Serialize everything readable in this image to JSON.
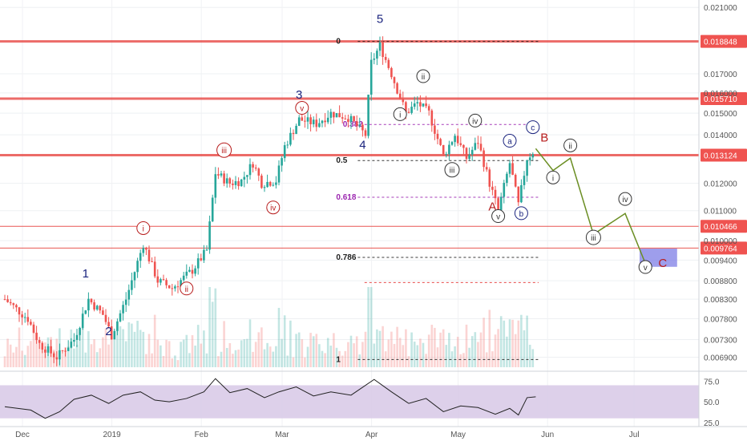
{
  "chart_data": {
    "type": "candlestick",
    "title": "",
    "xlabel": "",
    "ylabel": "",
    "x_ticks": [
      "Dec",
      "2019",
      "Feb",
      "Mar",
      "Apr",
      "May",
      "Jun",
      "Jul"
    ],
    "y_ticks": [
      0.021,
      0.017,
      0.016,
      0.015,
      0.014,
      0.012,
      0.011,
      0.01,
      0.0094,
      0.0088,
      0.0083,
      0.0078,
      0.0073,
      0.0069
    ],
    "ylim": [
      0.00665,
      0.0215
    ],
    "y_scale": "log",
    "resistance_levels": [
      {
        "label": "0.018848",
        "value": 0.018848,
        "color": "#e53935"
      },
      {
        "label": "0.015710",
        "value": 0.01571,
        "color": "#e53935"
      },
      {
        "label": "0.013124",
        "value": 0.013124,
        "color": "#e53935"
      },
      {
        "label": "0.010466",
        "value": 0.010466,
        "color": "#e53935"
      },
      {
        "label": "0.009764",
        "value": 0.009764,
        "color": "#e53935"
      }
    ],
    "fib_levels": [
      {
        "label": "0",
        "value": 0.01885,
        "color": "#222222"
      },
      {
        "label": "0.382",
        "value": 0.01447,
        "color": "#9c27b0"
      },
      {
        "label": "0.5",
        "value": 0.0129,
        "color": "#222222"
      },
      {
        "label": "0.618",
        "value": 0.01148,
        "color": "#9c27b0"
      },
      {
        "label": "0.786",
        "value": 0.00948,
        "color": "#222222"
      },
      {
        "label": "",
        "value": 0.00875,
        "color": "#e53935"
      },
      {
        "label": "1",
        "value": 0.00685,
        "color": "#222222"
      }
    ],
    "price_points": [
      {
        "date": "2018-11-26",
        "price": 0.0083
      },
      {
        "date": "2018-12-04",
        "price": 0.0078
      },
      {
        "date": "2018-12-08",
        "price": 0.0072
      },
      {
        "date": "2018-12-14",
        "price": 0.0069
      },
      {
        "date": "2018-12-20",
        "price": 0.0073
      },
      {
        "date": "2018-12-25",
        "price": 0.0083
      },
      {
        "date": "2018-12-30",
        "price": 0.0079
      },
      {
        "date": "2019-01-02",
        "price": 0.0074
      },
      {
        "date": "2019-01-07",
        "price": 0.0083
      },
      {
        "date": "2019-01-13",
        "price": 0.0099
      },
      {
        "date": "2019-01-18",
        "price": 0.0088
      },
      {
        "date": "2019-01-23",
        "price": 0.0086
      },
      {
        "date": "2019-01-30",
        "price": 0.0091
      },
      {
        "date": "2019-02-04",
        "price": 0.0097
      },
      {
        "date": "2019-02-07",
        "price": 0.0124
      },
      {
        "date": "2019-02-12",
        "price": 0.012
      },
      {
        "date": "2019-02-16",
        "price": 0.0121
      },
      {
        "date": "2019-02-20",
        "price": 0.0128
      },
      {
        "date": "2019-02-23",
        "price": 0.012
      },
      {
        "date": "2019-02-28",
        "price": 0.0121
      },
      {
        "date": "2019-03-03",
        "price": 0.0135
      },
      {
        "date": "2019-03-08",
        "price": 0.0147
      },
      {
        "date": "2019-03-14",
        "price": 0.0145
      },
      {
        "date": "2019-03-19",
        "price": 0.015
      },
      {
        "date": "2019-03-25",
        "price": 0.0148
      },
      {
        "date": "2019-03-31",
        "price": 0.014
      },
      {
        "date": "2019-04-02",
        "price": 0.0176
      },
      {
        "date": "2019-04-05",
        "price": 0.0186
      },
      {
        "date": "2019-04-09",
        "price": 0.017
      },
      {
        "date": "2019-04-14",
        "price": 0.015
      },
      {
        "date": "2019-04-18",
        "price": 0.0155
      },
      {
        "date": "2019-04-22",
        "price": 0.015
      },
      {
        "date": "2019-04-27",
        "price": 0.0131
      },
      {
        "date": "2019-05-01",
        "price": 0.014
      },
      {
        "date": "2019-05-05",
        "price": 0.013
      },
      {
        "date": "2019-05-09",
        "price": 0.0137
      },
      {
        "date": "2019-05-13",
        "price": 0.012
      },
      {
        "date": "2019-05-16",
        "price": 0.011
      },
      {
        "date": "2019-05-20",
        "price": 0.0128
      },
      {
        "date": "2019-05-23",
        "price": 0.0112
      },
      {
        "date": "2019-05-26",
        "price": 0.013
      },
      {
        "date": "2019-05-29",
        "price": 0.0134
      }
    ],
    "projection": [
      {
        "date": "2019-05-29",
        "price": 0.0134,
        "label": "c"
      },
      {
        "date": "2019-06-04",
        "price": 0.0125,
        "label": "i"
      },
      {
        "date": "2019-06-10",
        "price": 0.013,
        "label": "ii"
      },
      {
        "date": "2019-06-18",
        "price": 0.0102,
        "label": "iii"
      },
      {
        "date": "2019-06-29",
        "price": 0.0109,
        "label": "iv"
      },
      {
        "date": "2019-07-06",
        "price": 0.0093,
        "label": "v"
      }
    ],
    "target_zone": {
      "start": "2019-07-04",
      "end": "2019-07-17",
      "high": 0.00975,
      "low": 0.0092,
      "color": "#7e7ee6"
    },
    "wave_labels": [
      {
        "text": "1",
        "date": "2018-12-24",
        "price": 0.0089,
        "style": "big",
        "color": "#1a237e"
      },
      {
        "text": "2",
        "date": "2019-01-01",
        "price": 0.0074,
        "style": "big",
        "color": "#1a237e"
      },
      {
        "text": "3",
        "date": "2019-03-08",
        "price": 0.0157,
        "style": "big",
        "color": "#1a237e"
      },
      {
        "text": "4",
        "date": "2019-03-30",
        "price": 0.0134,
        "style": "big",
        "color": "#1a237e"
      },
      {
        "text": "5",
        "date": "2019-04-05",
        "price": 0.02,
        "style": "big",
        "color": "#1a237e"
      },
      {
        "text": "A",
        "date": "2019-05-14",
        "price": 0.011,
        "style": "big",
        "color": "#b71c1c"
      },
      {
        "text": "B",
        "date": "2019-06-01",
        "price": 0.0137,
        "style": "big",
        "color": "#b71c1c"
      },
      {
        "text": "C",
        "date": "2019-07-12",
        "price": 0.0092,
        "style": "big",
        "color": "#b71c1c"
      },
      {
        "text": "i",
        "date": "2019-01-13",
        "price": 0.0103,
        "style": "circle",
        "color": "#b71c1c"
      },
      {
        "text": "ii",
        "date": "2019-01-28",
        "price": 0.0085,
        "style": "circle",
        "color": "#b71c1c"
      },
      {
        "text": "iii",
        "date": "2019-02-10",
        "price": 0.0132,
        "style": "circle",
        "color": "#b71c1c"
      },
      {
        "text": "iv",
        "date": "2019-02-27",
        "price": 0.011,
        "style": "circle",
        "color": "#b71c1c"
      },
      {
        "text": "v",
        "date": "2019-03-09",
        "price": 0.0151,
        "style": "circle",
        "color": "#b71c1c"
      },
      {
        "text": "i",
        "date": "2019-04-12",
        "price": 0.0148,
        "style": "circle",
        "color": "#333333"
      },
      {
        "text": "ii",
        "date": "2019-04-20",
        "price": 0.0167,
        "style": "circle",
        "color": "#333333"
      },
      {
        "text": "iii",
        "date": "2019-04-30",
        "price": 0.0124,
        "style": "circle",
        "color": "#333333"
      },
      {
        "text": "iv",
        "date": "2019-05-08",
        "price": 0.0145,
        "style": "circle",
        "color": "#333333"
      },
      {
        "text": "v",
        "date": "2019-05-16",
        "price": 0.0107,
        "style": "circle",
        "color": "#333333"
      },
      {
        "text": "a",
        "date": "2019-05-20",
        "price": 0.0136,
        "style": "circle",
        "color": "#1a237e"
      },
      {
        "text": "b",
        "date": "2019-05-24",
        "price": 0.0108,
        "style": "circle",
        "color": "#1a237e"
      },
      {
        "text": "c",
        "date": "2019-05-28",
        "price": 0.0142,
        "style": "circle",
        "color": "#1a237e"
      },
      {
        "text": "i",
        "date": "2019-06-04",
        "price": 0.0121,
        "style": "circle",
        "color": "#333333"
      },
      {
        "text": "ii",
        "date": "2019-06-10",
        "price": 0.0134,
        "style": "circle",
        "color": "#333333"
      },
      {
        "text": "iii",
        "date": "2019-06-18",
        "price": 0.01,
        "style": "circle",
        "color": "#333333"
      },
      {
        "text": "iv",
        "date": "2019-06-29",
        "price": 0.0113,
        "style": "circle",
        "color": "#333333"
      },
      {
        "text": "v",
        "date": "2019-07-06",
        "price": 0.0091,
        "style": "circle",
        "color": "#333333"
      }
    ],
    "rsi": {
      "y_ticks": [
        75.0,
        50.0,
        25.0
      ],
      "ylim": [
        20,
        85
      ],
      "band": [
        30,
        70
      ],
      "values": [
        {
          "date": "2018-11-26",
          "v": 44
        },
        {
          "date": "2018-12-05",
          "v": 40
        },
        {
          "date": "2018-12-10",
          "v": 30
        },
        {
          "date": "2018-12-15",
          "v": 38
        },
        {
          "date": "2018-12-20",
          "v": 53
        },
        {
          "date": "2018-12-26",
          "v": 58
        },
        {
          "date": "2019-01-01",
          "v": 48
        },
        {
          "date": "2019-01-06",
          "v": 58
        },
        {
          "date": "2019-01-12",
          "v": 62
        },
        {
          "date": "2019-01-17",
          "v": 52
        },
        {
          "date": "2019-01-22",
          "v": 50
        },
        {
          "date": "2019-01-28",
          "v": 54
        },
        {
          "date": "2019-02-03",
          "v": 62
        },
        {
          "date": "2019-02-07",
          "v": 78
        },
        {
          "date": "2019-02-12",
          "v": 61
        },
        {
          "date": "2019-02-18",
          "v": 66
        },
        {
          "date": "2019-02-24",
          "v": 55
        },
        {
          "date": "2019-03-01",
          "v": 62
        },
        {
          "date": "2019-03-07",
          "v": 68
        },
        {
          "date": "2019-03-13",
          "v": 57
        },
        {
          "date": "2019-03-19",
          "v": 62
        },
        {
          "date": "2019-03-26",
          "v": 58
        },
        {
          "date": "2019-04-03",
          "v": 77
        },
        {
          "date": "2019-04-09",
          "v": 62
        },
        {
          "date": "2019-04-15",
          "v": 48
        },
        {
          "date": "2019-04-21",
          "v": 54
        },
        {
          "date": "2019-04-27",
          "v": 38
        },
        {
          "date": "2019-05-03",
          "v": 45
        },
        {
          "date": "2019-05-09",
          "v": 43
        },
        {
          "date": "2019-05-15",
          "v": 35
        },
        {
          "date": "2019-05-20",
          "v": 42
        },
        {
          "date": "2019-05-23",
          "v": 34
        },
        {
          "date": "2019-05-26",
          "v": 55
        },
        {
          "date": "2019-05-29",
          "v": 56
        }
      ]
    }
  }
}
